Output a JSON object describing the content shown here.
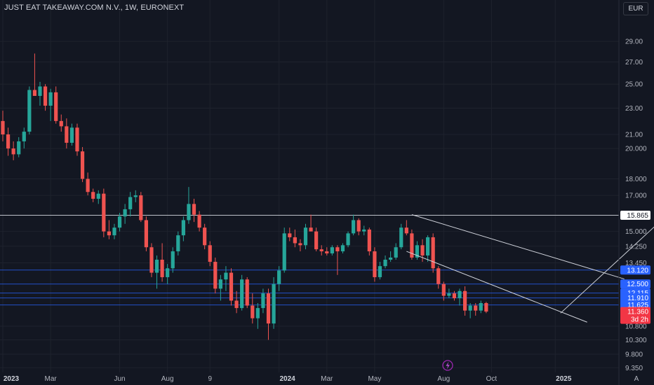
{
  "header": {
    "title": "JUST EAT TAKEAWAY.COM N.V., 1W, EURONEXT",
    "currency": "EUR"
  },
  "colors": {
    "up": "#26a69a",
    "down": "#ef5350",
    "bg": "#131722",
    "grid": "#1e222d",
    "blue_label": "#2962ff",
    "red_label": "#f23645",
    "line": "#d1d4dc"
  },
  "chart_data": {
    "type": "candlestick",
    "y_scale": "log",
    "ylim": [
      9.2,
      31.5
    ],
    "y_ticks": [
      29.0,
      27.0,
      25.0,
      23.0,
      21.0,
      20.0,
      18.0,
      17.0,
      15.0,
      14.25,
      13.45,
      10.8,
      10.3,
      9.8,
      9.35
    ],
    "y_tick_labels": [
      "29.00",
      "27.00",
      "25.00",
      "23.00",
      "21.00",
      "20.000",
      "18.000",
      "17.000",
      "15.000",
      "14.250",
      "13.450",
      "10.800",
      "10.300",
      "9.800",
      "9.350"
    ],
    "x_ticks": [
      {
        "label": "2023",
        "week": 0,
        "major": true
      },
      {
        "label": "Mar",
        "week": 9,
        "major": false
      },
      {
        "label": "Jun",
        "week": 22,
        "major": false
      },
      {
        "label": "Aug",
        "week": 31,
        "major": false
      },
      {
        "label": "9",
        "week": 39,
        "major": false
      },
      {
        "label": "2024",
        "week": 52,
        "major": true
      },
      {
        "label": "Mar",
        "week": 61,
        "major": false
      },
      {
        "label": "May",
        "week": 70,
        "major": false
      },
      {
        "label": "Aug",
        "week": 83,
        "major": false
      },
      {
        "label": "Oct",
        "week": 92,
        "major": false
      },
      {
        "label": "2025",
        "week": 104,
        "major": true
      }
    ],
    "candles": [
      [
        22.0,
        22.8,
        20.5,
        21.0
      ],
      [
        21.0,
        21.5,
        19.5,
        20.0
      ],
      [
        20.0,
        20.5,
        19.2,
        19.6
      ],
      [
        19.6,
        20.8,
        19.4,
        20.5
      ],
      [
        20.5,
        21.5,
        20.0,
        21.2
      ],
      [
        21.2,
        24.8,
        21.0,
        24.5
      ],
      [
        24.5,
        27.8,
        24.0,
        24.0
      ],
      [
        24.0,
        25.2,
        23.2,
        24.8
      ],
      [
        24.8,
        25.0,
        22.8,
        23.2
      ],
      [
        23.2,
        24.6,
        22.0,
        24.3
      ],
      [
        24.3,
        24.8,
        21.8,
        22.0
      ],
      [
        22.0,
        22.5,
        21.2,
        21.6
      ],
      [
        21.6,
        22.2,
        20.0,
        20.4
      ],
      [
        20.4,
        21.8,
        20.2,
        21.5
      ],
      [
        21.5,
        21.8,
        19.5,
        19.8
      ],
      [
        19.8,
        20.1,
        17.8,
        18.0
      ],
      [
        18.0,
        18.4,
        17.0,
        17.2
      ],
      [
        17.2,
        17.4,
        16.6,
        16.8
      ],
      [
        16.8,
        17.3,
        16.5,
        17.1
      ],
      [
        17.1,
        17.4,
        14.7,
        15.0
      ],
      [
        15.0,
        15.6,
        14.6,
        14.8
      ],
      [
        14.8,
        15.4,
        14.6,
        15.2
      ],
      [
        15.2,
        16.0,
        15.0,
        15.8
      ],
      [
        15.8,
        16.5,
        15.4,
        16.2
      ],
      [
        16.2,
        17.2,
        15.8,
        16.9
      ],
      [
        16.9,
        17.3,
        16.6,
        17.0
      ],
      [
        17.0,
        17.2,
        15.5,
        15.6
      ],
      [
        15.6,
        15.8,
        14.0,
        14.2
      ],
      [
        14.2,
        14.4,
        12.8,
        13.0
      ],
      [
        13.0,
        13.8,
        12.3,
        13.6
      ],
      [
        13.6,
        14.4,
        12.6,
        12.8
      ],
      [
        12.8,
        13.4,
        12.5,
        13.2
      ],
      [
        13.2,
        14.2,
        13.0,
        14.0
      ],
      [
        14.0,
        15.0,
        13.8,
        14.8
      ],
      [
        14.8,
        15.8,
        14.5,
        15.6
      ],
      [
        15.6,
        17.5,
        15.4,
        16.5
      ],
      [
        16.5,
        16.8,
        15.5,
        15.9
      ],
      [
        15.9,
        16.1,
        15.0,
        15.2
      ],
      [
        15.2,
        15.4,
        14.1,
        14.3
      ],
      [
        14.3,
        14.5,
        13.3,
        13.5
      ],
      [
        13.5,
        13.7,
        12.1,
        12.3
      ],
      [
        12.3,
        12.9,
        11.8,
        12.7
      ],
      [
        12.7,
        13.3,
        12.2,
        13.0
      ],
      [
        13.0,
        13.2,
        11.6,
        11.8
      ],
      [
        11.8,
        12.2,
        11.3,
        11.5
      ],
      [
        11.5,
        12.9,
        11.4,
        12.7
      ],
      [
        12.7,
        12.8,
        11.5,
        11.6
      ],
      [
        11.6,
        12.1,
        10.9,
        11.1
      ],
      [
        11.1,
        11.7,
        10.7,
        11.5
      ],
      [
        11.5,
        12.3,
        11.3,
        12.1
      ],
      [
        12.1,
        12.3,
        10.3,
        10.9
      ],
      [
        10.9,
        12.8,
        10.7,
        12.5
      ],
      [
        12.5,
        13.3,
        12.2,
        13.1
      ],
      [
        13.1,
        15.2,
        13.0,
        14.9
      ],
      [
        14.9,
        15.2,
        14.5,
        14.7
      ],
      [
        14.7,
        15.1,
        14.2,
        14.4
      ],
      [
        14.4,
        14.6,
        14.0,
        14.3
      ],
      [
        14.3,
        15.4,
        14.1,
        15.2
      ],
      [
        15.2,
        15.9,
        15.0,
        15.0
      ],
      [
        15.0,
        15.2,
        14.0,
        14.1
      ],
      [
        14.1,
        14.3,
        13.8,
        14.0
      ],
      [
        14.0,
        14.2,
        13.8,
        13.9
      ],
      [
        13.9,
        14.3,
        13.8,
        14.2
      ],
      [
        14.2,
        14.3,
        12.9,
        14.0
      ],
      [
        14.0,
        14.4,
        13.9,
        14.3
      ],
      [
        14.3,
        15.0,
        14.2,
        14.9
      ],
      [
        14.9,
        15.9,
        14.8,
        15.6
      ],
      [
        15.6,
        15.7,
        14.8,
        15.0
      ],
      [
        15.0,
        15.3,
        14.8,
        15.1
      ],
      [
        15.1,
        15.2,
        13.8,
        14.0
      ],
      [
        14.0,
        14.2,
        12.6,
        12.8
      ],
      [
        12.8,
        13.5,
        12.7,
        13.3
      ],
      [
        13.3,
        13.8,
        13.2,
        13.6
      ],
      [
        13.6,
        14.0,
        13.5,
        13.7
      ],
      [
        13.7,
        14.4,
        13.6,
        14.2
      ],
      [
        14.2,
        15.4,
        14.1,
        15.2
      ],
      [
        15.2,
        15.6,
        14.8,
        14.9
      ],
      [
        14.9,
        15.1,
        13.6,
        13.7
      ],
      [
        13.7,
        14.5,
        13.6,
        14.3
      ],
      [
        14.3,
        14.6,
        13.5,
        13.8
      ],
      [
        13.8,
        14.8,
        13.5,
        14.7
      ],
      [
        14.7,
        14.9,
        13.0,
        13.2
      ],
      [
        13.2,
        13.3,
        12.3,
        12.5
      ],
      [
        12.5,
        12.6,
        11.8,
        12.0
      ],
      [
        12.0,
        12.3,
        11.9,
        12.1
      ],
      [
        12.1,
        12.2,
        11.8,
        11.9
      ],
      [
        11.9,
        12.3,
        11.6,
        12.2
      ],
      [
        12.2,
        12.4,
        11.2,
        11.4
      ],
      [
        11.4,
        11.7,
        11.1,
        11.6
      ],
      [
        11.6,
        11.7,
        11.2,
        11.4
      ],
      [
        11.4,
        11.8,
        11.3,
        11.7
      ],
      [
        11.7,
        11.75,
        11.3,
        11.36
      ]
    ],
    "horizontal_lines": [
      {
        "value": 15.865,
        "label": "15.865",
        "style": "white"
      },
      {
        "value": 13.12,
        "label": "13.120",
        "style": "blue"
      },
      {
        "value": 12.5,
        "label": "12.500",
        "style": "blue"
      },
      {
        "value": 12.115,
        "label": "12.115",
        "style": "blue"
      },
      {
        "value": 11.91,
        "label": "11.910",
        "style": "blue"
      },
      {
        "value": 11.625,
        "label": "11.625",
        "style": "blue"
      }
    ],
    "last_price": {
      "value": 11.36,
      "label": "11.360",
      "countdown": "3d 2h"
    },
    "trendlines": [
      {
        "from": {
          "week": 77,
          "price": 15.9
        },
        "to": {
          "week": 117,
          "price": 12.72
        }
      },
      {
        "from": {
          "week": 76,
          "price": 14.0
        },
        "to": {
          "week": 110,
          "price": 10.95
        }
      },
      {
        "from": {
          "week": 105,
          "price": 11.3
        },
        "to": {
          "week": 125,
          "price": 15.865
        }
      }
    ]
  }
}
